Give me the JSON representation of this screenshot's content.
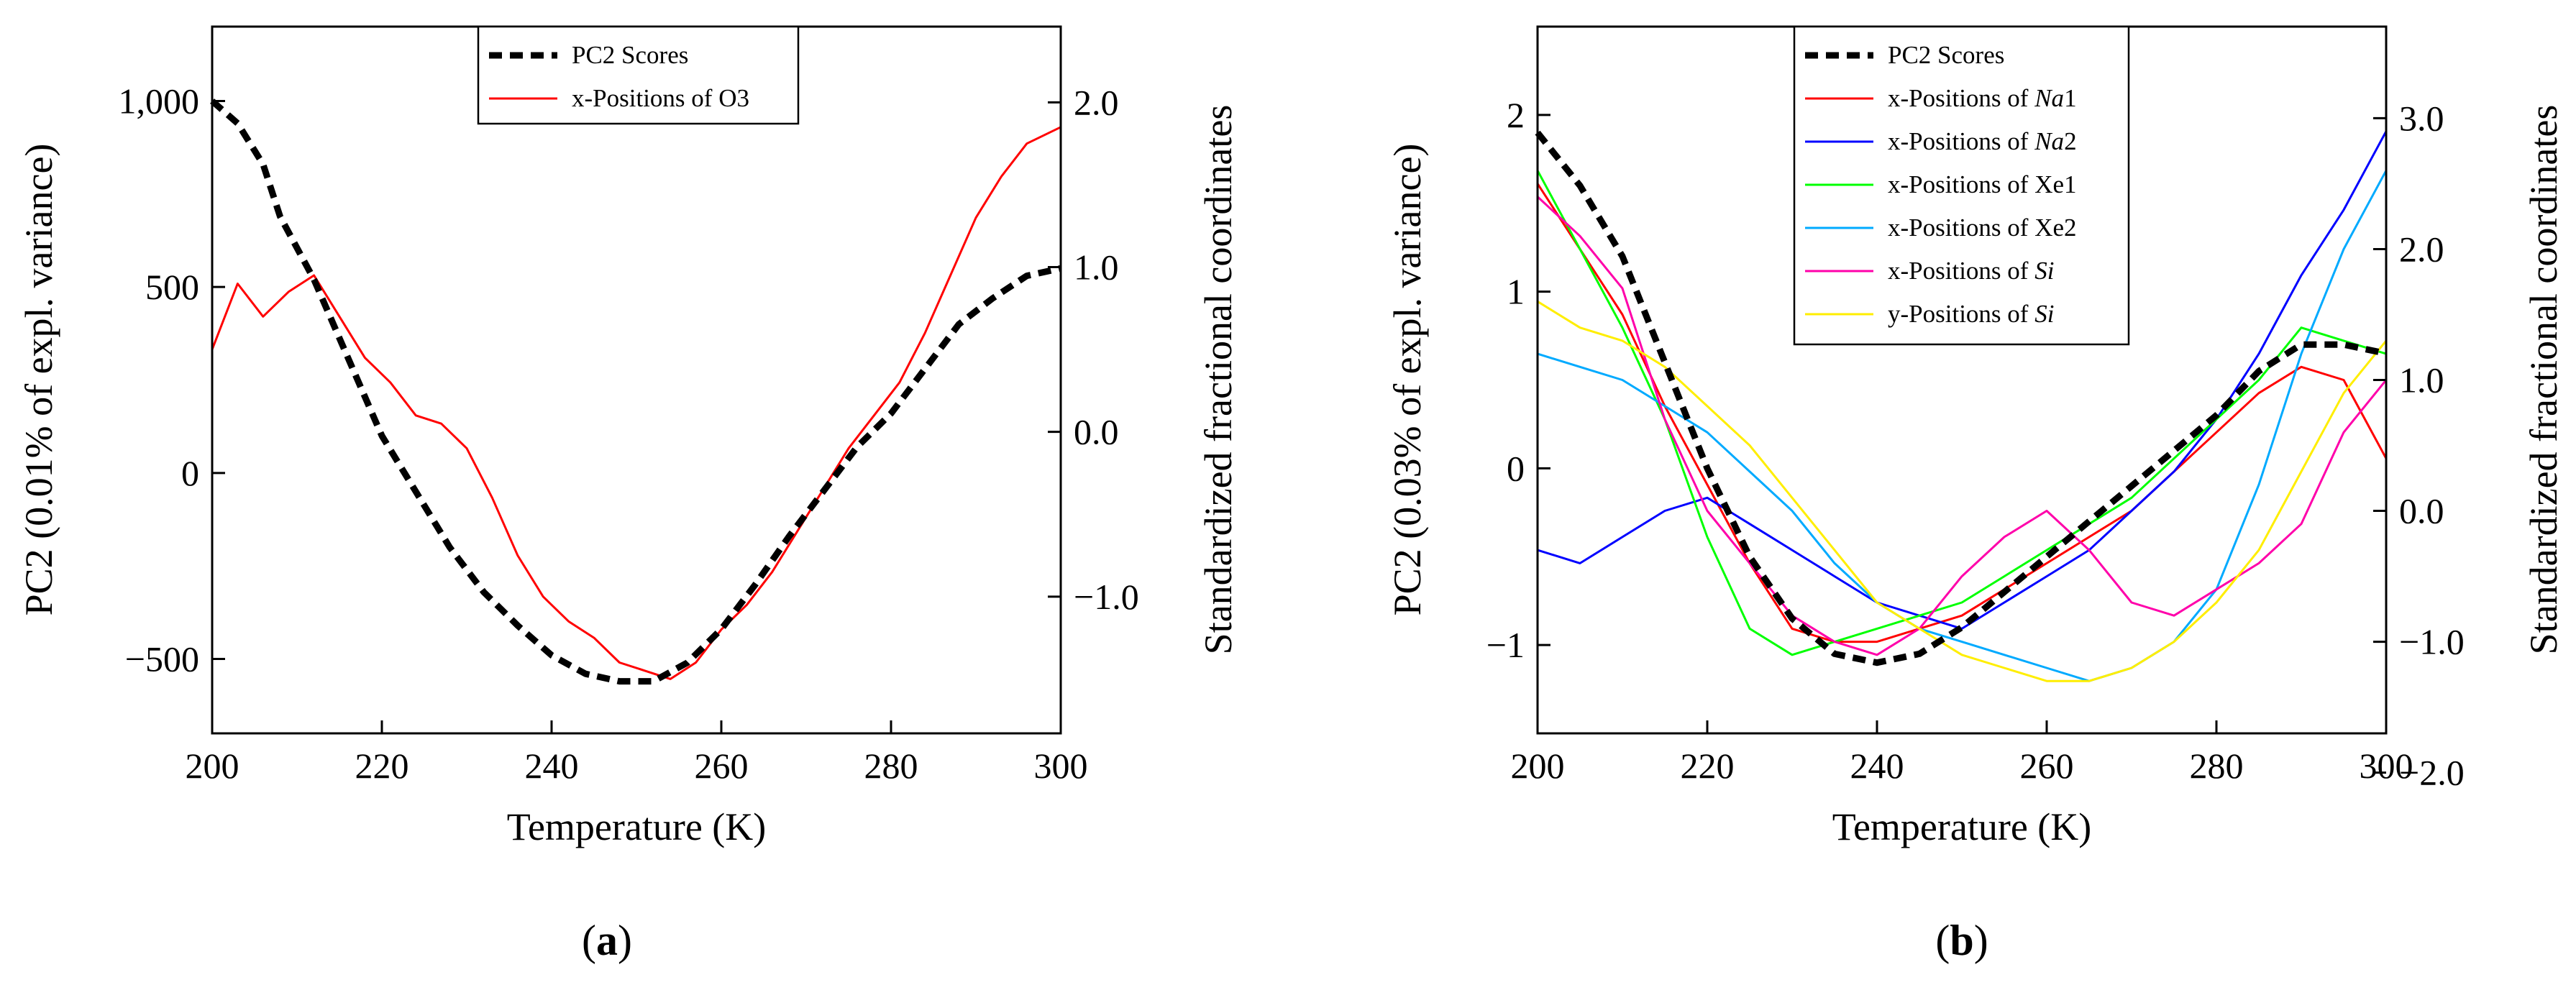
{
  "chart_data": [
    {
      "type": "line",
      "panel_label": "(a)",
      "panel_letter": "a",
      "xlabel": "Temperature (K)",
      "ylabel": "PC2 (0.01% of expl. variance)",
      "y2label": "Standardized fractional coordinates",
      "xlim": [
        200,
        300
      ],
      "ylim": [
        -700,
        1200
      ],
      "y2lim": [
        -1.83,
        2.46
      ],
      "xticks": [
        200,
        220,
        240,
        260,
        280,
        300
      ],
      "xtick_labels": [
        "200",
        "220",
        "240",
        "260",
        "280",
        "300"
      ],
      "yticks": [
        1000,
        500,
        0,
        -500
      ],
      "ytick_labels": [
        "1,000",
        "500",
        "0",
        "−500"
      ],
      "y2ticks": [
        2.0,
        1.0,
        0.0,
        -1.0
      ],
      "y2tick_labels": [
        "2.0",
        "1.0",
        "0.0",
        "−1.0"
      ],
      "legend_position": "top-center",
      "series": [
        {
          "name": "PC2 Scores",
          "axis": "left",
          "color": "#000000",
          "style": "dashed",
          "x": [
            200,
            203,
            206,
            208,
            212,
            216,
            220,
            224,
            228,
            232,
            236,
            240,
            244,
            248,
            252,
            256,
            260,
            264,
            268,
            272,
            276,
            280,
            284,
            288,
            292,
            296,
            300
          ],
          "y": [
            1000,
            940,
            830,
            690,
            520,
            310,
            100,
            -50,
            -200,
            -320,
            -410,
            -490,
            -540,
            -560,
            -560,
            -510,
            -420,
            -300,
            -170,
            -50,
            70,
            160,
            280,
            400,
            470,
            530,
            550
          ]
        },
        {
          "name": "x-Positions of O3",
          "axis": "right",
          "color": "#ff0000",
          "style": "solid",
          "x": [
            200,
            203,
            206,
            209,
            212,
            215,
            218,
            221,
            224,
            227,
            230,
            233,
            236,
            239,
            242,
            245,
            248,
            251,
            254,
            257,
            260,
            263,
            266,
            269,
            272,
            275,
            278,
            281,
            284,
            287,
            290,
            293,
            296,
            300
          ],
          "y": [
            0.5,
            0.9,
            0.7,
            0.85,
            0.95,
            0.7,
            0.45,
            0.3,
            0.1,
            0.05,
            -0.1,
            -0.4,
            -0.75,
            -1.0,
            -1.15,
            -1.25,
            -1.4,
            -1.45,
            -1.5,
            -1.4,
            -1.2,
            -1.05,
            -0.85,
            -0.6,
            -0.35,
            -0.1,
            0.1,
            0.3,
            0.6,
            0.95,
            1.3,
            1.55,
            1.75,
            1.85
          ]
        }
      ]
    },
    {
      "type": "line",
      "panel_label": "(b)",
      "panel_letter": "b",
      "xlabel": "Temperature (K)",
      "ylabel": "PC2 (0.03% of expl. variance)",
      "y2label": "Standardized fractional coordinates",
      "xlim": [
        200,
        300
      ],
      "ylim": [
        -1.5,
        2.5
      ],
      "y2lim": [
        -1.7,
        3.7
      ],
      "xticks": [
        200,
        220,
        240,
        260,
        280,
        300
      ],
      "xtick_labels": [
        "200",
        "220",
        "240",
        "260",
        "280",
        "300"
      ],
      "yticks": [
        2,
        1,
        0,
        -1
      ],
      "ytick_labels": [
        "2",
        "1",
        "0",
        "−1"
      ],
      "y2ticks": [
        3.0,
        2.0,
        1.0,
        0.0,
        -1.0,
        -2.0
      ],
      "y2tick_labels": [
        "3.0",
        "2.0",
        "1.0",
        "0.0",
        "−1.0",
        "−2.0"
      ],
      "legend_position": "top-center",
      "series": [
        {
          "name": "PC2 Scores",
          "name_pre": "PC2 Scores",
          "name_it": "",
          "name_post": "",
          "axis": "left",
          "color": "#000000",
          "style": "dashed",
          "x": [
            200,
            205,
            210,
            215,
            220,
            225,
            230,
            235,
            240,
            245,
            250,
            255,
            260,
            265,
            270,
            275,
            280,
            285,
            290,
            295,
            300
          ],
          "y": [
            1.9,
            1.6,
            1.2,
            0.6,
            0.0,
            -0.5,
            -0.85,
            -1.05,
            -1.1,
            -1.05,
            -0.9,
            -0.7,
            -0.5,
            -0.3,
            -0.1,
            0.1,
            0.3,
            0.55,
            0.7,
            0.7,
            0.65
          ]
        },
        {
          "name": "x-Positions of Na1",
          "name_pre": "x-Positions of ",
          "name_it": "Na",
          "name_post": "1",
          "axis": "right",
          "color": "#ff0000",
          "style": "solid",
          "x": [
            200,
            205,
            210,
            215,
            220,
            225,
            230,
            235,
            240,
            245,
            250,
            255,
            260,
            265,
            270,
            275,
            280,
            285,
            290,
            295,
            300
          ],
          "y": [
            2.5,
            2.0,
            1.5,
            0.8,
            0.2,
            -0.4,
            -0.9,
            -1.0,
            -1.0,
            -0.9,
            -0.8,
            -0.6,
            -0.4,
            -0.2,
            0.0,
            0.3,
            0.6,
            0.9,
            1.1,
            1.0,
            0.4
          ]
        },
        {
          "name": "x-Positions of Na2",
          "name_pre": "x-Positions of ",
          "name_it": "Na",
          "name_post": "2",
          "axis": "right",
          "color": "#0000ff",
          "style": "solid",
          "x": [
            200,
            205,
            210,
            215,
            220,
            225,
            230,
            235,
            240,
            245,
            250,
            255,
            260,
            265,
            270,
            275,
            280,
            285,
            290,
            295,
            300
          ],
          "y": [
            -0.3,
            -0.4,
            -0.2,
            0.0,
            0.1,
            -0.1,
            -0.3,
            -0.5,
            -0.7,
            -0.8,
            -0.9,
            -0.7,
            -0.5,
            -0.3,
            0.0,
            0.3,
            0.7,
            1.2,
            1.8,
            2.3,
            2.9
          ]
        },
        {
          "name": "x-Positions of Xe1",
          "name_pre": "x-Positions of ",
          "name_it": "",
          "name_post": "Xe1",
          "axis": "right",
          "color": "#00ff00",
          "style": "solid",
          "x": [
            200,
            205,
            210,
            215,
            220,
            225,
            230,
            235,
            240,
            245,
            250,
            255,
            260,
            265,
            270,
            275,
            280,
            285,
            290,
            295,
            300
          ],
          "y": [
            2.6,
            2.0,
            1.4,
            0.7,
            -0.2,
            -0.9,
            -1.1,
            -1.0,
            -0.9,
            -0.8,
            -0.7,
            -0.5,
            -0.3,
            -0.1,
            0.1,
            0.4,
            0.7,
            1.0,
            1.4,
            1.3,
            1.2
          ]
        },
        {
          "name": "x-Positions of Xe2",
          "name_pre": "x-Positions of ",
          "name_it": "",
          "name_post": "Xe2",
          "axis": "right",
          "color": "#00aaff",
          "style": "solid",
          "x": [
            200,
            205,
            210,
            215,
            220,
            225,
            230,
            235,
            240,
            245,
            250,
            255,
            260,
            265,
            270,
            275,
            280,
            285,
            290,
            295,
            300
          ],
          "y": [
            1.2,
            1.1,
            1.0,
            0.8,
            0.6,
            0.3,
            0.0,
            -0.4,
            -0.7,
            -0.9,
            -1.0,
            -1.1,
            -1.2,
            -1.3,
            -1.2,
            -1.0,
            -0.6,
            0.2,
            1.2,
            2.0,
            2.6
          ]
        },
        {
          "name": "x-Positions of Si",
          "name_pre": "x-Positions of ",
          "name_it": "Si",
          "name_post": "",
          "axis": "right",
          "color": "#ff00aa",
          "style": "solid",
          "x": [
            200,
            205,
            210,
            215,
            220,
            225,
            230,
            235,
            240,
            245,
            250,
            255,
            260,
            265,
            270,
            275,
            280,
            285,
            290,
            295,
            300
          ],
          "y": [
            2.4,
            2.1,
            1.7,
            0.7,
            0.0,
            -0.4,
            -0.8,
            -1.0,
            -1.1,
            -0.9,
            -0.5,
            -0.2,
            0.0,
            -0.3,
            -0.7,
            -0.8,
            -0.6,
            -0.4,
            -0.1,
            0.6,
            1.0
          ]
        },
        {
          "name": "y-Positions of Si",
          "name_pre": "y-Positions of ",
          "name_it": "Si",
          "name_post": "",
          "axis": "right",
          "color": "#ffee00",
          "style": "solid",
          "x": [
            200,
            205,
            210,
            215,
            220,
            225,
            230,
            235,
            240,
            245,
            250,
            255,
            260,
            265,
            270,
            275,
            280,
            285,
            290,
            295,
            300
          ],
          "y": [
            1.6,
            1.4,
            1.3,
            1.1,
            0.8,
            0.5,
            0.1,
            -0.3,
            -0.7,
            -0.9,
            -1.1,
            -1.2,
            -1.3,
            -1.3,
            -1.2,
            -1.0,
            -0.7,
            -0.3,
            0.3,
            0.9,
            1.3
          ]
        }
      ]
    }
  ]
}
